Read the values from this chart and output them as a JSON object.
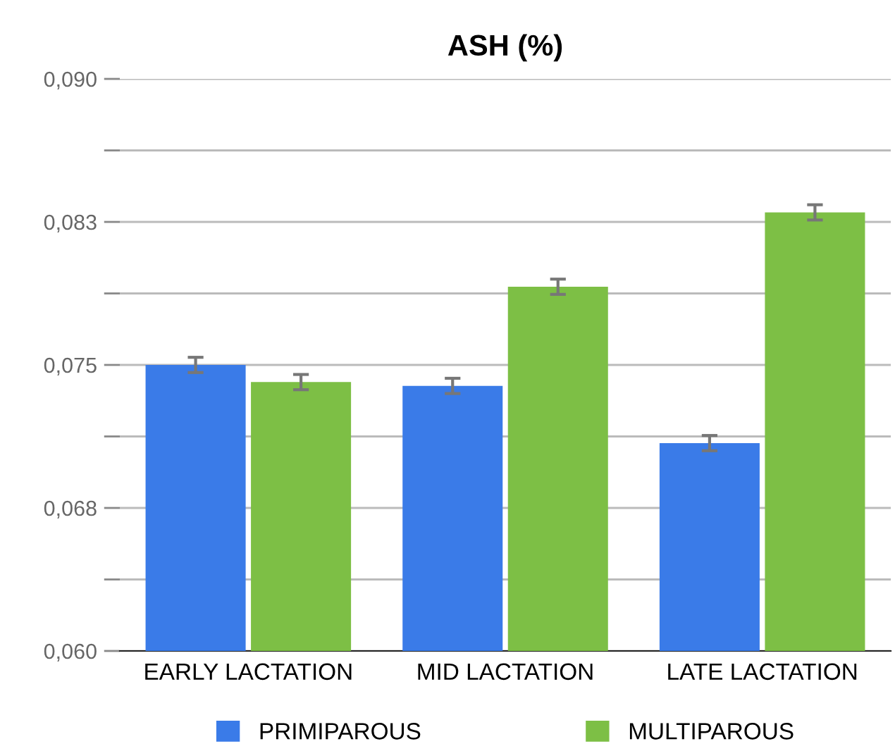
{
  "chart_data": {
    "type": "bar",
    "title": "ASH (%)",
    "categories": [
      "EARLY LACTATION",
      "MID LACTATION",
      "LATE LACTATION"
    ],
    "series": [
      {
        "name": "PRIMIPAROUS",
        "color": "#3a7be8",
        "values": [
          0.075,
          0.0739,
          0.0709
        ],
        "errors": [
          0.0004,
          0.0004,
          0.0004
        ]
      },
      {
        "name": "MULTIPAROUS",
        "color": "#7dbf45",
        "values": [
          0.0741,
          0.0791,
          0.083
        ],
        "errors": [
          0.0004,
          0.0004,
          0.0004
        ]
      }
    ],
    "ylim": [
      0.06,
      0.09
    ],
    "yticks": [
      {
        "value": 0.06,
        "label": "0,060"
      },
      {
        "value": 0.06375,
        "label": null
      },
      {
        "value": 0.0675,
        "label": "0,068"
      },
      {
        "value": 0.07125,
        "label": null
      },
      {
        "value": 0.075,
        "label": "0,075"
      },
      {
        "value": 0.07875,
        "label": null
      },
      {
        "value": 0.0825,
        "label": "0,083"
      },
      {
        "value": 0.08625,
        "label": null
      },
      {
        "value": 0.09,
        "label": "0,090"
      }
    ],
    "grid": "y",
    "legend": "bottom"
  }
}
